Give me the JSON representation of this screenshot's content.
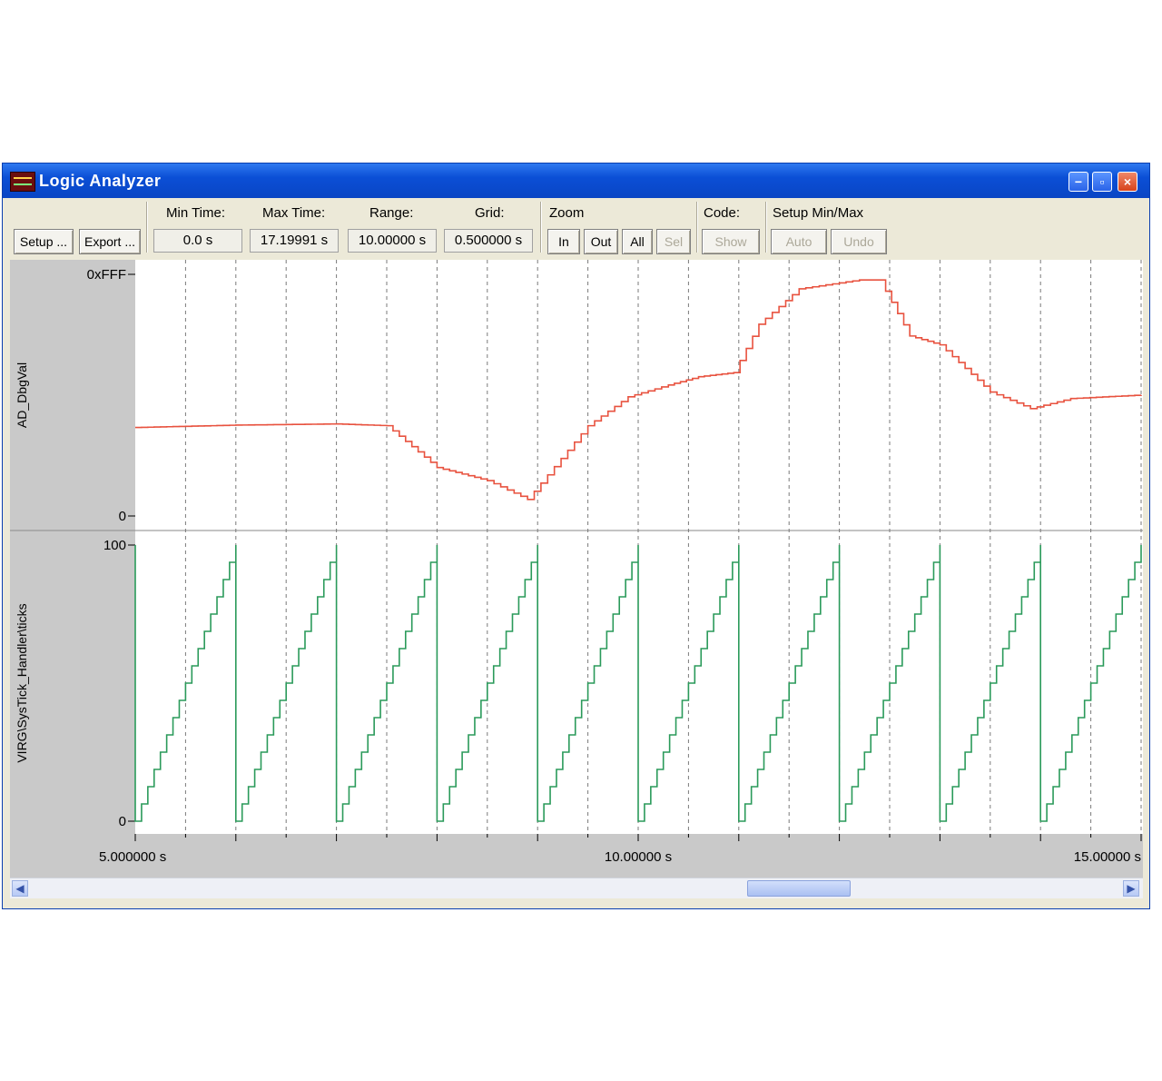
{
  "window": {
    "title": "Logic Analyzer"
  },
  "toolbar": {
    "setup_label": "Setup ...",
    "export_label": "Export ...",
    "min_time_label": "Min Time:",
    "min_time_value": "0.0 s",
    "max_time_label": "Max Time:",
    "max_time_value": "17.19991 s",
    "range_label": "Range:",
    "range_value": "10.00000 s",
    "grid_label": "Grid:",
    "grid_value": "0.500000 s",
    "zoom_label": "Zoom",
    "zoom_in": "In",
    "zoom_out": "Out",
    "zoom_all": "All",
    "zoom_sel": "Sel",
    "code_label": "Code:",
    "code_show": "Show",
    "setup_minmax_label": "Setup Min/Max",
    "auto_label": "Auto",
    "undo_label": "Undo"
  },
  "chart_data": {
    "type": "line",
    "x_tick_labels": [
      "5.000000 s",
      "10.00000 s",
      "15.00000 s"
    ],
    "xlim": [
      5.0,
      15.0
    ],
    "grid_interval_s": 0.5,
    "series": [
      {
        "name": "AD_DbgVal",
        "color": "#e8523f",
        "ylim": [
          0,
          4095
        ],
        "y_tick_labels": [
          "0xFFF",
          "0"
        ],
        "x": [
          5.0,
          5.5,
          6.0,
          7.0,
          7.5,
          8.0,
          8.5,
          8.9,
          9.5,
          9.9,
          10.3,
          10.6,
          10.95,
          11.2,
          11.6,
          12.2,
          12.4,
          12.7,
          13.0,
          13.5,
          13.9,
          14.3,
          15.0
        ],
        "y": [
          1500,
          1520,
          1540,
          1560,
          1530,
          820,
          600,
          280,
          1530,
          2020,
          2220,
          2360,
          2430,
          3250,
          3850,
          4000,
          4000,
          3050,
          2900,
          2100,
          1820,
          1990,
          2050
        ]
      },
      {
        "name": "VIRG\\SysTick_Handler\\ticks",
        "color": "#2a9a5a",
        "ylim": [
          0,
          100
        ],
        "y_tick_labels": [
          "100",
          "0"
        ],
        "x": [
          5.0,
          5.0,
          6.0,
          6.0,
          7.0,
          7.0,
          8.0,
          8.0,
          9.0,
          9.0,
          10.0,
          10.0,
          11.0,
          11.0,
          12.0,
          12.0,
          13.0,
          13.0,
          14.0,
          14.0,
          15.0
        ],
        "y": [
          100,
          0,
          100,
          0,
          100,
          0,
          100,
          0,
          100,
          0,
          100,
          0,
          100,
          0,
          100,
          0,
          100,
          0,
          100,
          0,
          100
        ]
      }
    ]
  }
}
